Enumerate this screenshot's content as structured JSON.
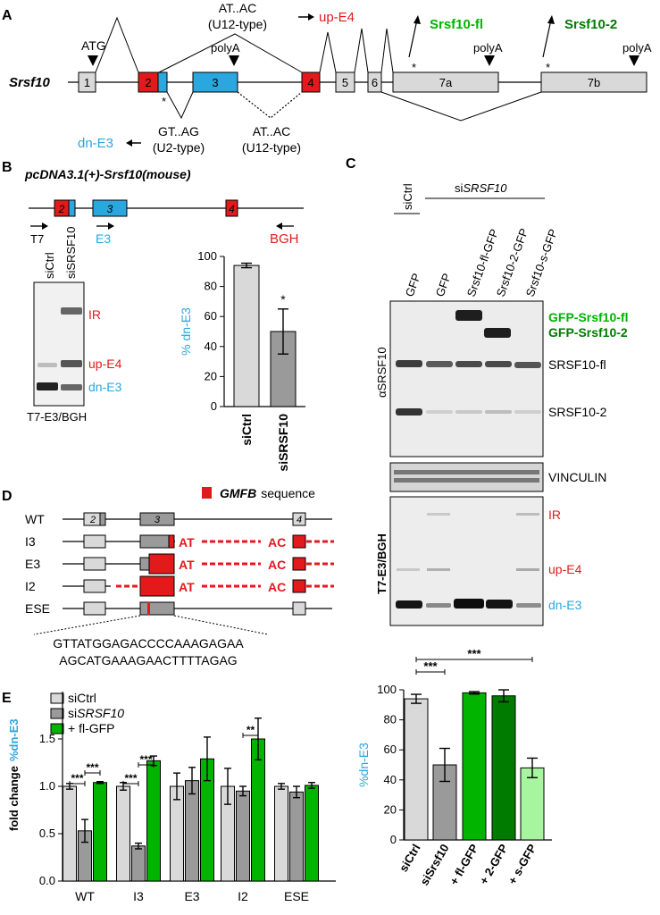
{
  "colors": {
    "red": "#e31a1c",
    "blue": "#2aa7de",
    "green": "#00b400",
    "dark_green": "#007b00",
    "light_gray": "#d9d9d9",
    "mid_gray": "#9a9a9a",
    "light_green": "#a8f5a0"
  },
  "panel_a": {
    "letter": "A",
    "gene": "Srsf10",
    "atg": "ATG",
    "exons": [
      "1",
      "2",
      "3",
      "4",
      "5",
      "6",
      "7a",
      "7b"
    ],
    "polya": "polyA",
    "star": "*",
    "at_ac_top": "AT..AC",
    "u12_top": "(U12-type)",
    "up_e4": "up-E4",
    "gt_ag": "GT..AG",
    "u2": "(U2-type)",
    "dn_e3": "dn-E3",
    "at_ac_bottom": "AT..AC",
    "u12_bottom": "(U12-type)",
    "srsf10_fl": "Srsf10-fl",
    "srsf10_2": "Srsf10-2"
  },
  "panel_b": {
    "letter": "B",
    "construct": "pcDNA3.1(+)-Srsf10(mouse)",
    "exons": [
      "2",
      "3",
      "4"
    ],
    "primers": [
      "T7",
      "E3",
      "BGH"
    ],
    "lanes": [
      "siCtrl",
      "siSRSF10"
    ],
    "bands": [
      "IR",
      "up-E4",
      "dn-E3"
    ],
    "gel_label": "T7-E3/BGH",
    "ylabel": "% dn-E3",
    "significance": "*"
  },
  "panel_c": {
    "letter": "C",
    "header_sictrl": "siCtrl",
    "header_sisrsf10_prefix": "si",
    "header_sisrsf10_gene": "SRSF10",
    "lanes": [
      "GFP",
      "GFP",
      "Srsf10-fl-GFP",
      "Srsf10-2-GFP",
      "Srsf10-s-GFP"
    ],
    "blot_label": "αSRSF10",
    "bands_fusion": [
      "GFP-Srsf10-fl",
      "GFP-Srsf10-2"
    ],
    "bands_endog": [
      "SRSF10-fl",
      "SRSF10-2"
    ],
    "loading": "VINCULIN",
    "gel2_label": "T7-E3/BGH",
    "gel2_bands": [
      "IR",
      "up-E4",
      "dn-E3"
    ],
    "ylabel": "%dn-E3",
    "significance": [
      "***",
      "***"
    ]
  },
  "panel_d": {
    "letter": "D",
    "legend_gene": "GMFB",
    "legend_suffix": "sequence",
    "rows": [
      "WT",
      "I3",
      "E3",
      "I2",
      "ESE"
    ],
    "exons": [
      "2",
      "3",
      "4"
    ],
    "at": "AT",
    "ac": "AC",
    "seq1": "GTTATGGAGACCCCAAAGAGAA",
    "seq2": "AGCATGAAAGAACTTTTAGAG"
  },
  "panel_e": {
    "letter": "E",
    "legend": [
      "siCtrl",
      "si",
      "SRSF10",
      "+ fl-GFP"
    ],
    "ylabel_prefix": "fold change",
    "ylabel_blue": "%dn-E3",
    "significance": [
      "***",
      "***",
      "***",
      "***",
      "**"
    ]
  },
  "chart_data": [
    {
      "type": "bar",
      "panel": "B",
      "categories": [
        "siCtrl",
        "siSRSF10"
      ],
      "values": [
        94,
        50
      ],
      "errors": [
        1.5,
        15
      ],
      "ylabel": "% dn-E3",
      "ylim": [
        0,
        100
      ],
      "yticks": [
        0,
        20,
        40,
        60,
        80,
        100
      ]
    },
    {
      "type": "bar",
      "panel": "C",
      "categories": [
        "siCtrl",
        "siSrsf10",
        "+ fl-GFP",
        "+ 2-GFP",
        "+ s-GFP"
      ],
      "values": [
        94,
        50,
        98,
        96,
        48
      ],
      "errors": [
        3,
        11,
        0.8,
        4,
        6.5
      ],
      "ylabel": "%dn-E3",
      "ylim": [
        0,
        100
      ],
      "yticks": [
        0,
        20,
        40,
        60,
        80,
        100
      ]
    },
    {
      "type": "bar",
      "panel": "E",
      "categories": [
        "WT",
        "I3",
        "E3",
        "I2",
        "ESE"
      ],
      "series": [
        {
          "name": "siCtrl",
          "values": [
            1.0,
            1.0,
            1.0,
            1.0,
            1.0
          ],
          "errors": [
            0.03,
            0.04,
            0.14,
            0.19,
            0.03
          ]
        },
        {
          "name": "siSRSF10",
          "values": [
            0.53,
            0.37,
            1.06,
            0.95,
            0.94
          ],
          "errors": [
            0.12,
            0.03,
            0.14,
            0.05,
            0.06
          ]
        },
        {
          "name": "+ fl-GFP",
          "values": [
            1.04,
            1.27,
            1.29,
            1.5,
            1.01
          ],
          "errors": [
            0.01,
            0.05,
            0.23,
            0.22,
            0.03
          ]
        }
      ],
      "ylabel": "fold change %dn-E3",
      "ylim": [
        0,
        2.0
      ],
      "yticks": [
        0.0,
        0.5,
        1.0,
        1.5
      ]
    }
  ]
}
